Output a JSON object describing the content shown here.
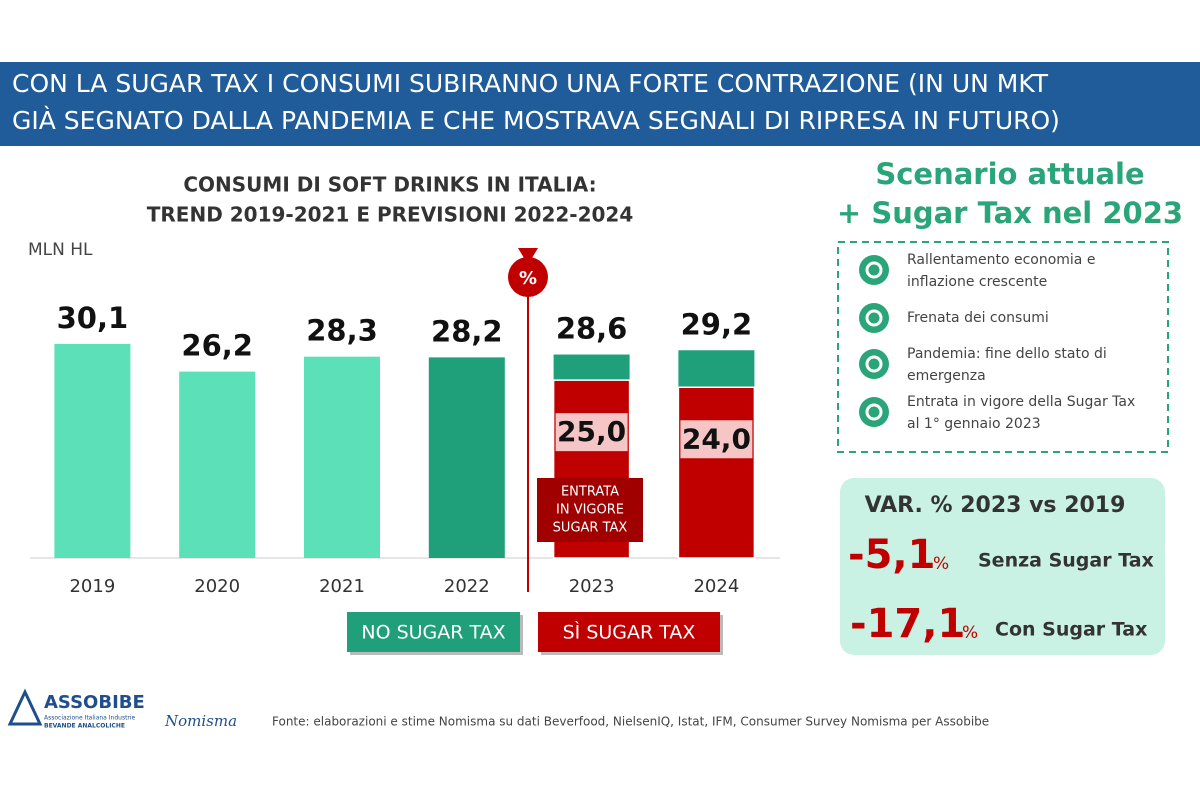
{
  "header": {
    "title_lines": [
      "CON LA SUGAR TAX I CONSUMI SUBIRANNO UNA FORTE CONTRAZIONE (IN UN MKT",
      "GIÀ SEGNATO DALLA PANDEMIA E CHE MOSTRAVA SEGNALI DI RIPRESA IN FUTURO)"
    ]
  },
  "chart_data": {
    "type": "bar",
    "title": "CONSUMI DI SOFT DRINKS IN ITALIA:",
    "subtitle": "TREND 2019-2021 E PREVISIONI 2022-2024",
    "y_label": "MLN HL",
    "categories": [
      "2019",
      "2020",
      "2021",
      "2022",
      "2023",
      "2024"
    ],
    "values": [
      30.1,
      26.2,
      28.3,
      28.2,
      28.6,
      29.2
    ],
    "value_labels": [
      "30,1",
      "26,2",
      "28,3",
      "28,2",
      "28,6",
      "29,2"
    ],
    "colors": [
      "#5ce0b8",
      "#5ce0b8",
      "#5ce0b8",
      "#20a07a",
      "#20a07a",
      "#20a07a"
    ],
    "sugar_tax_values": [
      null,
      null,
      null,
      null,
      25.0,
      24.0
    ],
    "sugar_tax_value_labels": [
      null,
      null,
      null,
      null,
      "25,0",
      "24,0"
    ],
    "sugar_tax_color": "#c00000",
    "ylim": [
      0,
      35
    ],
    "icon_label": "%",
    "annotation_lines": [
      "ENTRATA",
      "IN VIGORE",
      "SUGAR TAX"
    ],
    "regions": [
      {
        "label": "NO SUGAR TAX",
        "color": "#20a07a"
      },
      {
        "label": "SÌ SUGAR TAX",
        "color": "#c00000"
      }
    ]
  },
  "scenario": {
    "title_lines": [
      "Scenario attuale",
      "+ Sugar Tax nel 2023"
    ],
    "items": [
      [
        "Rallentamento economia e",
        "inflazione crescente"
      ],
      [
        "Frenata dei consumi"
      ],
      [
        "Pandemia: fine dello stato di",
        "emergenza"
      ],
      [
        "Entrata in vigore della Sugar Tax",
        "al 1° gennaio 2023"
      ]
    ]
  },
  "variation": {
    "title": "VAR. % 2023 vs 2019",
    "rows": [
      {
        "value": "-5,1",
        "unit": "%",
        "label": "Senza Sugar Tax"
      },
      {
        "value": "-17,1",
        "unit": "%",
        "label": "Con Sugar Tax"
      }
    ]
  },
  "footer": {
    "logo_name": "ASSOBIBE",
    "logo_line1": "Associazione Italiana Industrie",
    "logo_line2": "BEVANDE ANALCOLICHE",
    "logo2": "Nomisma",
    "source": "Fonte: elaborazioni e stime Nomisma su dati Beverfood, NielsenIQ, Istat, IFM, Consumer Survey Nomisma per Assobibe"
  }
}
